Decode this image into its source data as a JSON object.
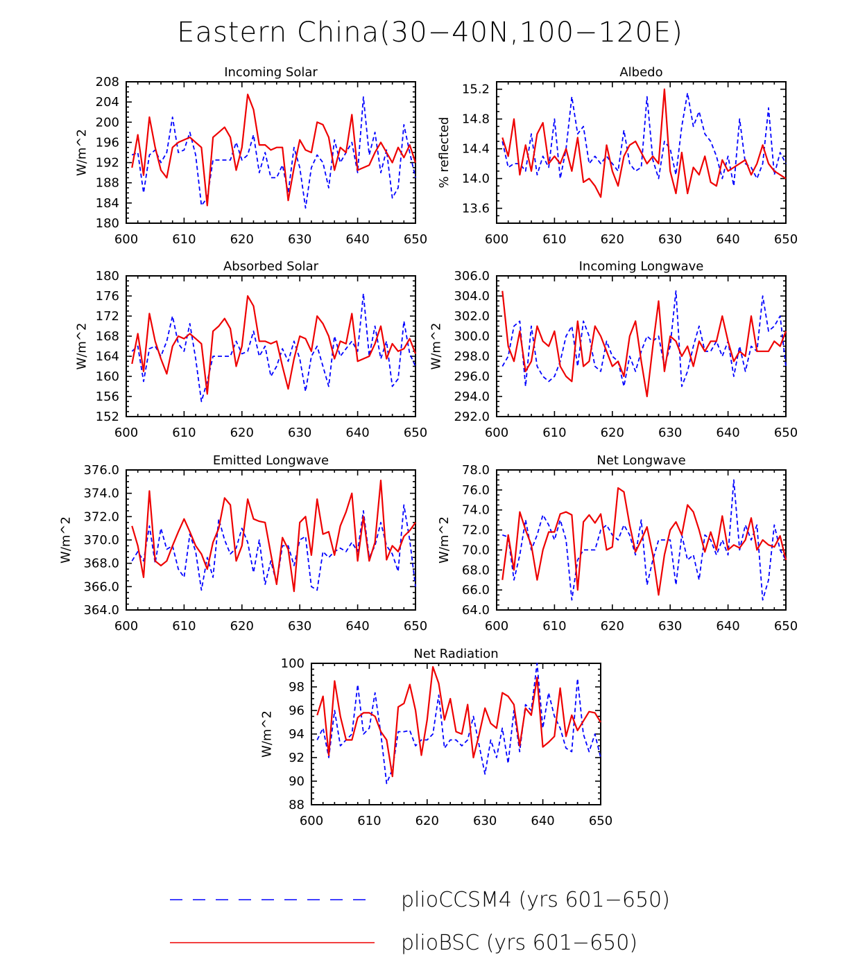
{
  "figure": {
    "title": "Eastern China(30−40N,100−120E)"
  },
  "legend": {
    "entries": [
      {
        "name": "plioCCSM4 (yrs 601−650)",
        "color": "#0000ff",
        "style": "dashed"
      },
      {
        "name": "plioBSC (yrs 601−650)",
        "color": "#ee0000",
        "style": "solid"
      }
    ]
  },
  "chart_data": [
    {
      "type": "line",
      "title": "Incoming Solar",
      "ylabel": "W/m^2",
      "xlim": [
        600,
        650
      ],
      "ylim": [
        180,
        208
      ],
      "xticks": [
        600,
        610,
        620,
        630,
        640,
        650
      ],
      "yticks": [
        180,
        184,
        188,
        192,
        196,
        200,
        204,
        208
      ],
      "ytick_labels": [
        "180",
        "184",
        "188",
        "192",
        "196",
        "200",
        "204",
        "208"
      ],
      "x_start": 601,
      "series": [
        {
          "name": "plioCCSM4",
          "color": "#0000ff",
          "style": "dashed",
          "values": [
            193.5,
            194,
            186,
            193.5,
            194.5,
            192,
            194,
            201,
            194,
            194.5,
            198,
            193.5,
            183.5,
            185,
            192.5,
            192.5,
            192.5,
            192.5,
            196,
            192.5,
            193.5,
            197.5,
            190,
            194,
            189,
            189,
            191.5,
            186,
            195,
            191,
            183,
            191,
            193.5,
            192,
            187,
            196.5,
            192,
            194,
            196,
            190,
            205,
            193.5,
            198,
            190,
            194.5,
            185,
            187,
            199.5,
            194,
            189
          ]
        },
        {
          "name": "plioBSC",
          "color": "#ee0000",
          "style": "solid",
          "values": [
            191,
            197.5,
            189.5,
            201,
            195,
            190.5,
            189,
            195,
            196,
            196.5,
            197,
            196,
            195,
            183.5,
            197,
            198,
            199,
            197,
            190.5,
            195,
            205.5,
            202.5,
            195.5,
            195.5,
            194.5,
            195,
            195,
            184.5,
            191,
            196.5,
            194.5,
            194,
            200,
            199.5,
            197,
            190.5,
            195,
            194,
            201.5,
            190.5,
            191,
            191.5,
            194,
            196,
            194,
            192,
            195,
            193,
            195.5,
            192
          ]
        }
      ]
    },
    {
      "type": "line",
      "title": "Albedo",
      "ylabel": "% reflected",
      "xlim": [
        600,
        650
      ],
      "ylim": [
        13.4,
        15.3
      ],
      "xticks": [
        600,
        610,
        620,
        630,
        640,
        650
      ],
      "yticks": [
        13.6,
        14.0,
        14.4,
        14.8,
        15.2
      ],
      "ytick_labels": [
        "13.6",
        "14.0",
        "14.4",
        "14.8",
        "15.2"
      ],
      "x_start": 601,
      "series": [
        {
          "name": "plioCCSM4",
          "color": "#0000ff",
          "style": "dashed",
          "values": [
            14.5,
            14.15,
            14.2,
            14.2,
            14.1,
            14.6,
            14.05,
            14.3,
            14.15,
            14.8,
            14.0,
            14.4,
            15.1,
            14.6,
            14.7,
            14.2,
            14.3,
            14.2,
            14.3,
            14.2,
            14.1,
            14.65,
            14.2,
            14.1,
            14.15,
            15.1,
            14.25,
            14.0,
            14.5,
            14.4,
            14.05,
            14.7,
            15.15,
            14.7,
            14.9,
            14.6,
            14.5,
            14.3,
            14.0,
            14.3,
            13.9,
            14.8,
            14.2,
            14.15,
            14.0,
            14.2,
            14.95,
            14.05,
            14.35,
            14.2
          ]
        },
        {
          "name": "plioBSC",
          "color": "#ee0000",
          "style": "solid",
          "values": [
            14.55,
            14.3,
            14.8,
            14.05,
            14.45,
            14.1,
            14.6,
            14.75,
            14.2,
            14.3,
            14.2,
            14.4,
            14.1,
            14.55,
            13.95,
            14.0,
            13.9,
            13.75,
            14.45,
            14.1,
            13.9,
            14.3,
            14.45,
            14.5,
            14.35,
            14.2,
            14.3,
            14.2,
            15.2,
            14.1,
            13.8,
            14.35,
            13.8,
            14.15,
            14.05,
            14.3,
            13.95,
            13.9,
            14.25,
            14.1,
            14.15,
            14.2,
            14.25,
            14.05,
            14.2,
            14.45,
            14.2,
            14.1,
            14.05,
            14.0
          ]
        }
      ]
    },
    {
      "type": "line",
      "title": "Absorbed Solar",
      "ylabel": "W/m^2",
      "xlim": [
        600,
        650
      ],
      "ylim": [
        152,
        180
      ],
      "xticks": [
        600,
        610,
        620,
        630,
        640,
        650
      ],
      "yticks": [
        152,
        156,
        160,
        164,
        168,
        172,
        176,
        180
      ],
      "ytick_labels": [
        "152",
        "156",
        "160",
        "164",
        "168",
        "172",
        "176",
        "180"
      ],
      "x_start": 601,
      "series": [
        {
          "name": "plioCCSM4",
          "color": "#0000ff",
          "style": "dashed",
          "values": [
            165,
            166,
            159,
            165.5,
            166,
            164,
            167,
            172,
            166.5,
            165,
            170.5,
            163.5,
            155,
            159,
            164,
            164,
            164,
            164,
            167,
            164.5,
            165,
            169,
            164,
            166,
            160,
            162,
            165.5,
            163,
            167,
            163.5,
            157,
            164,
            166,
            162,
            158,
            168,
            164,
            165.5,
            167,
            165,
            176.5,
            164,
            170,
            163.5,
            167,
            158,
            159.5,
            171,
            164.5,
            162
          ]
        },
        {
          "name": "plioBSC",
          "color": "#ee0000",
          "style": "solid",
          "values": [
            162.5,
            168.5,
            161,
            172.5,
            167,
            163.5,
            160.5,
            166,
            168,
            167.5,
            168.5,
            167.5,
            166.5,
            156.5,
            169,
            170,
            171.5,
            169.5,
            162,
            166,
            176,
            174,
            167,
            167,
            166.5,
            167,
            162,
            157.5,
            163.5,
            168,
            167.5,
            165,
            172,
            170.5,
            168,
            163.5,
            167,
            166.5,
            172.5,
            163,
            163.5,
            164,
            166.5,
            170,
            163.5,
            166.5,
            165,
            165.5,
            167.5,
            164.5
          ]
        }
      ]
    },
    {
      "type": "line",
      "title": "Incoming Longwave",
      "ylabel": "W/m^2",
      "xlim": [
        600,
        650
      ],
      "ylim": [
        292,
        306
      ],
      "xticks": [
        600,
        610,
        620,
        630,
        640,
        650
      ],
      "yticks": [
        292,
        294,
        296,
        298,
        300,
        302,
        304,
        306
      ],
      "ytick_labels": [
        "292.0",
        "294.0",
        "296.0",
        "298.0",
        "300.0",
        "302.0",
        "304.0",
        "306.0"
      ],
      "x_start": 601,
      "series": [
        {
          "name": "plioCCSM4",
          "color": "#0000ff",
          "style": "dashed",
          "values": [
            297,
            298,
            301,
            301.5,
            295,
            301,
            297,
            296,
            295.5,
            296,
            297.5,
            300,
            301,
            297,
            301.5,
            300,
            297,
            296.5,
            299.5,
            298,
            297.5,
            295,
            298,
            296.5,
            298.5,
            300,
            299.5,
            300,
            297,
            299,
            304.5,
            295,
            296.5,
            299,
            301,
            298.5,
            298.5,
            299.5,
            298,
            299.5,
            296,
            299,
            296.5,
            299,
            298.5,
            304,
            300.5,
            301,
            302,
            297
          ]
        },
        {
          "name": "plioBSC",
          "color": "#ee0000",
          "style": "solid",
          "values": [
            304.5,
            299,
            297.5,
            300.5,
            296.5,
            297.5,
            301,
            299.5,
            299,
            300.5,
            297,
            296,
            295.5,
            301.5,
            297,
            297.5,
            301,
            300,
            298.5,
            297,
            297.5,
            296,
            300,
            301.5,
            297.5,
            294,
            299,
            303.5,
            296.5,
            300,
            299.5,
            298,
            299,
            297,
            299.5,
            298.5,
            299.5,
            299.5,
            302,
            299.5,
            297.5,
            298.5,
            298,
            302,
            298.5,
            298.5,
            298.5,
            299.5,
            299,
            300.5
          ]
        }
      ]
    },
    {
      "type": "line",
      "title": "Emitted Longwave",
      "ylabel": "W/m^2",
      "xlim": [
        600,
        650
      ],
      "ylim": [
        364,
        376
      ],
      "xticks": [
        600,
        610,
        620,
        630,
        640,
        650
      ],
      "yticks": [
        364,
        366,
        368,
        370,
        372,
        374,
        376
      ],
      "ytick_labels": [
        "364.0",
        "366.0",
        "368.0",
        "370.0",
        "372.0",
        "374.0",
        "376.0"
      ],
      "x_start": 601,
      "series": [
        {
          "name": "plioCCSM4",
          "color": "#0000ff",
          "style": "dashed",
          "values": [
            368.2,
            369,
            368.2,
            371.2,
            368,
            371,
            369.2,
            369.5,
            367.5,
            366.8,
            370.5,
            369,
            365.7,
            368.5,
            366.8,
            371.8,
            370,
            368.8,
            369.3,
            371,
            369.8,
            367.2,
            370,
            366.2,
            368.2,
            366.3,
            369.5,
            369.5,
            367.8,
            370,
            370.3,
            366,
            365.7,
            369,
            368.5,
            369,
            369.3,
            369,
            369.8,
            369,
            372.5,
            368.5,
            369.5,
            371.5,
            369.5,
            368.8,
            367.3,
            373,
            370,
            366
          ]
        },
        {
          "name": "plioBSC",
          "color": "#ee0000",
          "style": "solid",
          "values": [
            371.2,
            369.5,
            366.8,
            374.2,
            368.2,
            367.8,
            368.2,
            369.5,
            370.7,
            371.8,
            370.7,
            369.5,
            368.8,
            367.5,
            369.8,
            371,
            373.6,
            373,
            368.2,
            369.5,
            373.5,
            371.8,
            371.6,
            371.5,
            368.8,
            366.2,
            370.2,
            369.2,
            365.6,
            371.5,
            372,
            368.7,
            373.5,
            370.5,
            370.7,
            368.7,
            371.2,
            372.4,
            374,
            368.2,
            372,
            368.2,
            369.8,
            375.1,
            368.3,
            369.5,
            369,
            370.3,
            370.8,
            371.5
          ]
        }
      ]
    },
    {
      "type": "line",
      "title": "Net Longwave",
      "ylabel": "W/m^2",
      "xlim": [
        600,
        650
      ],
      "ylim": [
        64,
        78
      ],
      "xticks": [
        600,
        610,
        620,
        630,
        640,
        650
      ],
      "yticks": [
        64,
        66,
        68,
        70,
        72,
        74,
        76,
        78
      ],
      "ytick_labels": [
        "64.0",
        "66.0",
        "68.0",
        "70.0",
        "72.0",
        "74.0",
        "76.0",
        "78.0"
      ],
      "x_start": 601,
      "series": [
        {
          "name": "plioCCSM4",
          "color": "#0000ff",
          "style": "dashed",
          "values": [
            71.5,
            71.3,
            67,
            69.5,
            73,
            70,
            71.5,
            73.5,
            72.5,
            71,
            73,
            71,
            65,
            69,
            70,
            70,
            70,
            72,
            72.5,
            71.5,
            71,
            72.5,
            71.5,
            69.5,
            73,
            66.5,
            69,
            71,
            71,
            71,
            66.5,
            71.5,
            69,
            69.5,
            67,
            71.5,
            71,
            69.5,
            71,
            69.5,
            77,
            70,
            72.5,
            71,
            72.5,
            65,
            67,
            72.5,
            70,
            69
          ]
        },
        {
          "name": "plioBSC",
          "color": "#ee0000",
          "style": "solid",
          "values": [
            67,
            71.5,
            68,
            73.8,
            72,
            70.5,
            67,
            70,
            71.8,
            71.8,
            73.6,
            73.8,
            73.5,
            66,
            72.8,
            73.5,
            72.7,
            73.6,
            70,
            70.3,
            76.2,
            75.8,
            72.5,
            69.8,
            71,
            72.3,
            69.5,
            65.5,
            69.5,
            72,
            72.8,
            71.5,
            74.5,
            73.8,
            72,
            69.8,
            71.8,
            70,
            73.4,
            70,
            70.5,
            70.2,
            71,
            73.2,
            70,
            71,
            70.5,
            70.3,
            71.4,
            69
          ]
        }
      ]
    },
    {
      "type": "line",
      "title": "Net Radiation",
      "ylabel": "W/m^2",
      "xlim": [
        600,
        650
      ],
      "ylim": [
        88,
        100
      ],
      "xticks": [
        600,
        610,
        620,
        630,
        640,
        650
      ],
      "yticks": [
        88,
        90,
        92,
        94,
        96,
        98,
        100
      ],
      "ytick_labels": [
        "88",
        "90",
        "92",
        "94",
        "96",
        "98",
        "100"
      ],
      "x_start": 601,
      "series": [
        {
          "name": "plioCCSM4",
          "color": "#0000ff",
          "style": "dashed",
          "values": [
            93.5,
            94.5,
            92,
            96,
            93,
            93.5,
            94,
            98.2,
            94,
            94.5,
            97.5,
            94,
            89.8,
            91,
            94.2,
            94.2,
            94.3,
            93,
            93.5,
            93.5,
            94,
            97.3,
            92.8,
            93.5,
            93.5,
            93,
            93.5,
            95.5,
            93,
            90.6,
            93.5,
            92,
            94.5,
            91.5,
            96,
            92.5,
            96.5,
            96,
            100,
            94.5,
            97.5,
            95.5,
            94.5,
            92.8,
            92.5,
            98.7,
            94,
            92.5,
            94,
            92
          ]
        },
        {
          "name": "plioBSC",
          "color": "#ee0000",
          "style": "solid",
          "values": [
            95.6,
            97.2,
            92.2,
            98.5,
            95.5,
            93.5,
            93.5,
            95.4,
            95.8,
            95.8,
            95.5,
            94.2,
            93.5,
            90.4,
            96.3,
            96.6,
            98.2,
            96,
            92.2,
            95.2,
            99.7,
            98.3,
            95.2,
            97,
            94.2,
            94,
            96.5,
            92,
            94,
            96.2,
            94.9,
            94.5,
            97.5,
            97.2,
            96.5,
            93,
            96.2,
            95.6,
            98.8,
            92.9,
            93.3,
            93.8,
            97.9,
            93.8,
            95.6,
            94.3,
            95.1,
            95.9,
            95.8,
            95
          ]
        }
      ]
    }
  ]
}
